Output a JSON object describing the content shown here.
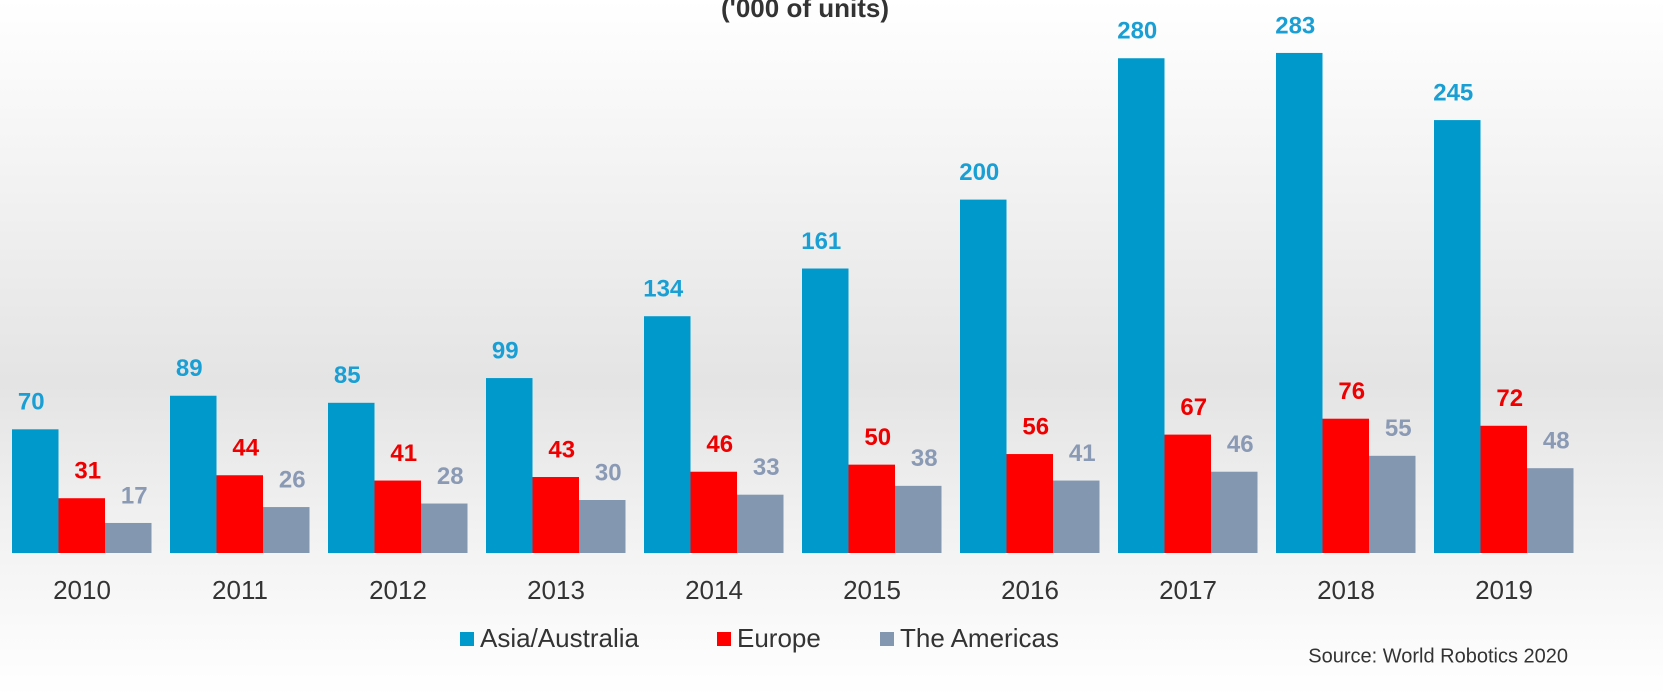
{
  "chart_data": {
    "type": "bar",
    "title": "('000 of units)",
    "categories": [
      "2010",
      "2011",
      "2012",
      "2013",
      "2014",
      "2015",
      "2016",
      "2017",
      "2018",
      "2019"
    ],
    "series": [
      {
        "name": "Asia/Australia",
        "color": "#0099cc",
        "label_color": "#1a9fd4",
        "values": [
          70,
          89,
          85,
          99,
          134,
          161,
          200,
          280,
          283,
          245
        ]
      },
      {
        "name": "Europe",
        "color": "#ff0000",
        "label_color": "#ee0000",
        "values": [
          31,
          44,
          41,
          43,
          46,
          50,
          56,
          67,
          76,
          72
        ]
      },
      {
        "name": "The Americas",
        "color": "#8497b0",
        "label_color": "#8a9ab5",
        "values": [
          17,
          26,
          28,
          30,
          33,
          38,
          41,
          46,
          55,
          48
        ]
      }
    ],
    "legend": "bottom",
    "source": "Source: World Robotics 2020"
  }
}
